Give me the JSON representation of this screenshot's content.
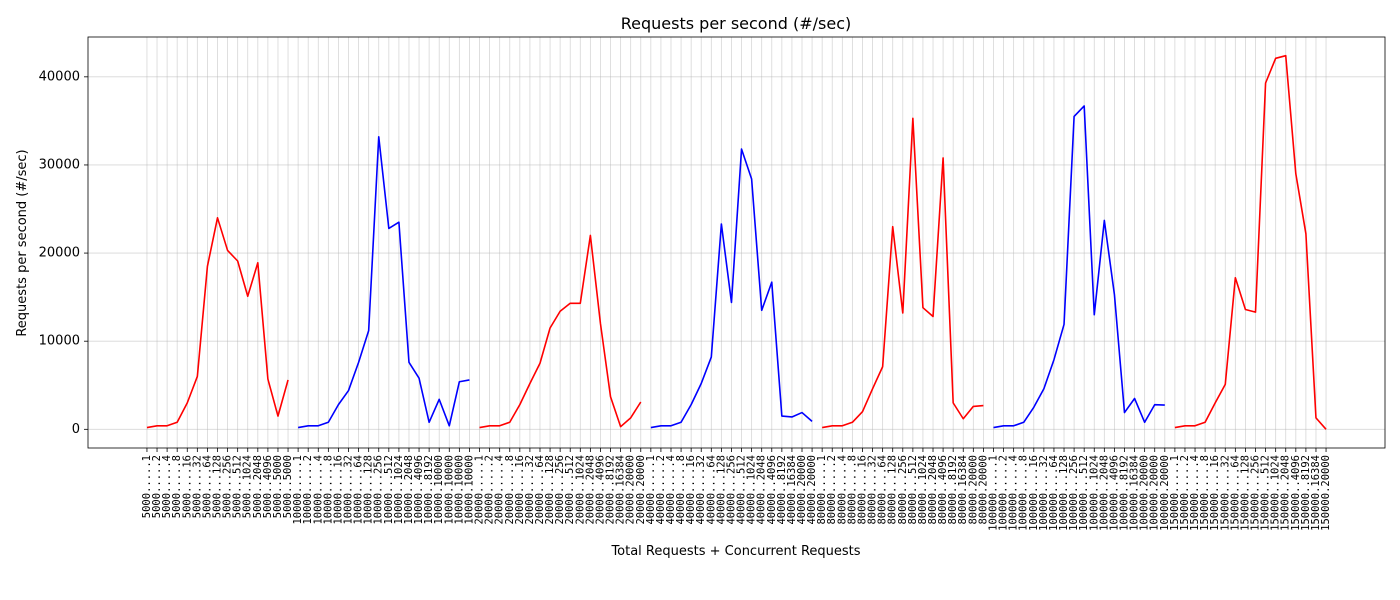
{
  "chart_data": {
    "type": "line",
    "title": "Requests per second (#/sec)",
    "xlabel": "Total Requests + Concurrent Requests",
    "ylabel": "Requests per second (#/sec)",
    "categories": [
      "5000.....1",
      "5000.....2",
      "5000.....4",
      "5000.....8",
      "5000....16",
      "5000....32",
      "5000....64",
      "5000...128",
      "5000...256",
      "5000...512",
      "5000..1024",
      "5000..2048",
      "5000..4096",
      "5000..5000",
      "5000..5000",
      "10000.....1",
      "10000.....2",
      "10000.....4",
      "10000.....8",
      "10000....16",
      "10000....32",
      "10000....64",
      "10000...128",
      "10000...256",
      "10000...512",
      "10000..1024",
      "10000..2048",
      "10000..4096",
      "10000..8192",
      "10000.10000",
      "10000.10000",
      "10000.10000",
      "10000.10000",
      "20000.....1",
      "20000.....2",
      "20000.....4",
      "20000.....8",
      "20000....16",
      "20000....32",
      "20000....64",
      "20000...128",
      "20000...256",
      "20000...512",
      "20000..1024",
      "20000..2048",
      "20000..4096",
      "20000..8192",
      "20000.16384",
      "20000.20000",
      "20000.20000",
      "40000.....1",
      "40000.....2",
      "40000.....4",
      "40000.....8",
      "40000....16",
      "40000....32",
      "40000....64",
      "40000...128",
      "40000...256",
      "40000...512",
      "40000..1024",
      "40000..2048",
      "40000..4096",
      "40000..8192",
      "40000.16384",
      "40000.20000",
      "40000.20000",
      "80000.....1",
      "80000.....2",
      "80000.....4",
      "80000.....8",
      "80000....16",
      "80000....32",
      "80000....64",
      "80000...128",
      "80000...256",
      "80000...512",
      "80000..1024",
      "80000..2048",
      "80000..4096",
      "80000..8192",
      "80000.16384",
      "80000.20000",
      "80000.20000",
      "100000.....1",
      "100000.....2",
      "100000.....4",
      "100000.....8",
      "100000....16",
      "100000....32",
      "100000....64",
      "100000...128",
      "100000...256",
      "100000...512",
      "100000..1024",
      "100000..2048",
      "100000..4096",
      "100000..8192",
      "100000.16384",
      "100000.20000",
      "100000.20000",
      "100000.20000",
      "150000.....1",
      "150000.....2",
      "150000.....4",
      "150000.....8",
      "150000....16",
      "150000....32",
      "150000....64",
      "150000...128",
      "150000...256",
      "150000...512",
      "150000..1024",
      "150000..2048",
      "150000..4096",
      "150000..8192",
      "150000.16384",
      "150000.20000"
    ],
    "series": [
      {
        "color": "#ff0000",
        "values": [
          200,
          400,
          400,
          800,
          3000,
          6000,
          18500,
          24000,
          20300,
          19100,
          15100,
          18900,
          5700,
          1500,
          5600,
          null,
          null,
          null,
          null,
          null,
          null,
          null,
          null,
          null,
          null,
          null,
          null,
          null,
          null,
          null,
          null,
          null,
          null,
          200,
          400,
          400,
          800,
          2800,
          5200,
          7500,
          11500,
          13400,
          14300,
          14300,
          22000,
          12000,
          3700,
          300,
          1300,
          3100,
          null,
          null,
          null,
          null,
          null,
          null,
          null,
          null,
          null,
          null,
          null,
          null,
          null,
          null,
          null,
          null,
          null,
          200,
          400,
          400,
          800,
          2000,
          4600,
          7100,
          23000,
          13200,
          35300,
          13800,
          12800,
          30800,
          3000,
          1200,
          2600,
          2700,
          null,
          null,
          null,
          null,
          null,
          null,
          null,
          null,
          null,
          null,
          null,
          null,
          null,
          null,
          null,
          null,
          null,
          null,
          200,
          400,
          400,
          800,
          3000,
          5100,
          17200,
          13600,
          13300,
          39300,
          42100,
          42400,
          29000,
          22200,
          1300,
          0
        ]
      },
      {
        "color": "#0000ff",
        "values": [
          null,
          null,
          null,
          null,
          null,
          null,
          null,
          null,
          null,
          null,
          null,
          null,
          null,
          null,
          null,
          200,
          400,
          400,
          800,
          2800,
          4400,
          7600,
          11200,
          33200,
          22800,
          23500,
          7600,
          5800,
          800,
          3400,
          400,
          5400,
          5600,
          null,
          null,
          null,
          null,
          null,
          null,
          null,
          null,
          null,
          null,
          null,
          null,
          null,
          null,
          null,
          null,
          null,
          200,
          400,
          400,
          800,
          2800,
          5200,
          8200,
          23300,
          14400,
          31800,
          28400,
          13500,
          16700,
          1500,
          1400,
          1900,
          900,
          null,
          null,
          null,
          null,
          null,
          null,
          null,
          null,
          null,
          null,
          null,
          null,
          null,
          null,
          null,
          null,
          null,
          200,
          400,
          400,
          800,
          2500,
          4600,
          7900,
          11900,
          35500,
          36700,
          13000,
          23700,
          15300,
          1900,
          3500,
          800,
          2800,
          2750,
          null,
          null,
          null,
          null,
          null,
          null,
          null,
          null,
          null,
          null,
          null,
          null,
          null,
          null,
          null,
          null
        ]
      }
    ],
    "ylim": [
      -2120,
      44520
    ],
    "yticks": [
      0,
      10000,
      20000,
      30000,
      40000
    ],
    "grid": true
  }
}
